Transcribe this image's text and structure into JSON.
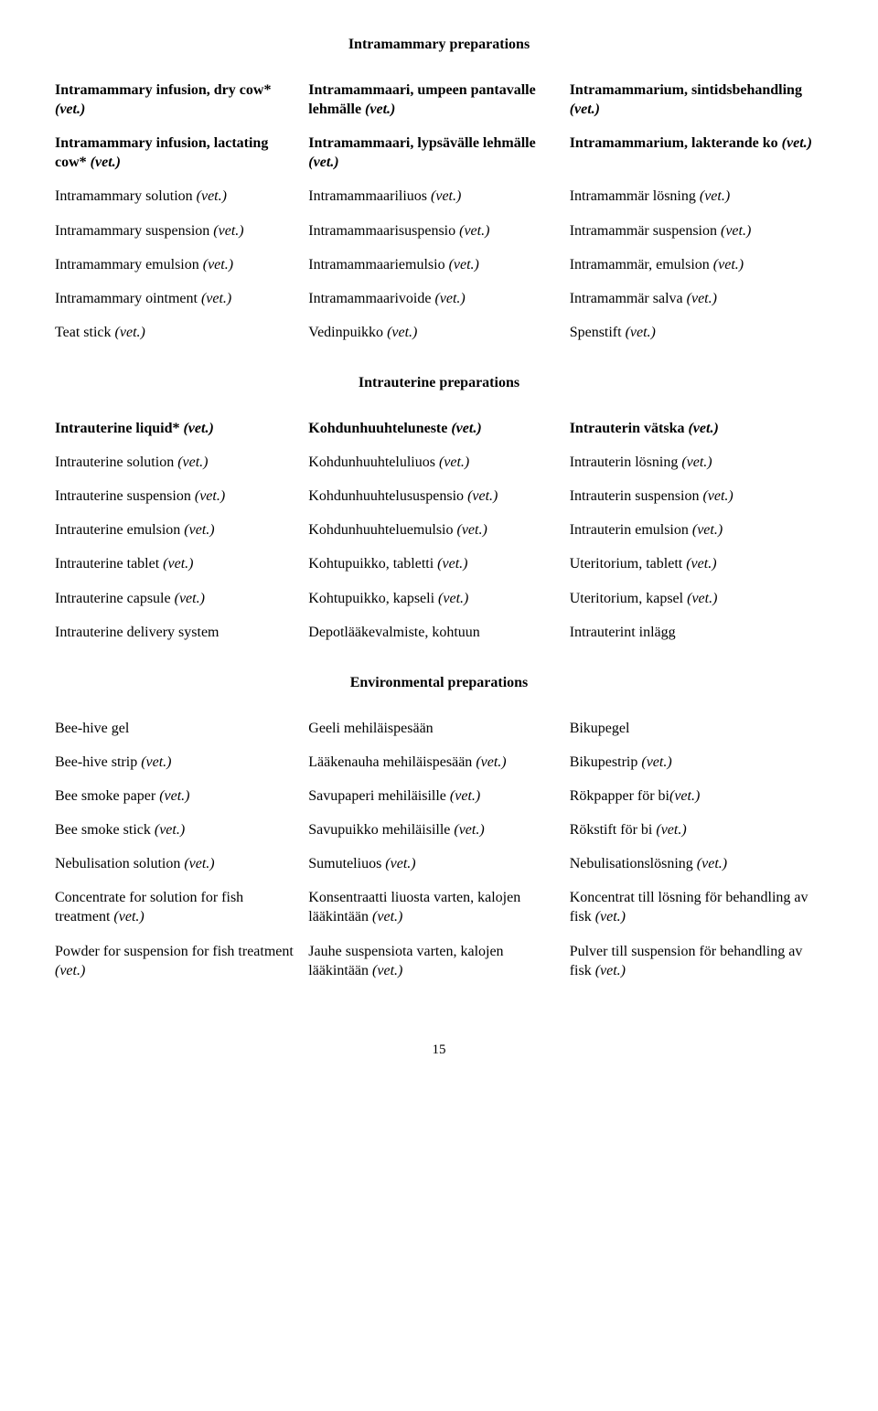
{
  "page_number": "15",
  "sections": [
    {
      "heading": "Intramammary preparations",
      "rows": [
        {
          "c1_pre": "Intramammary infusion, dry cow* ",
          "c1_bp": true,
          "c1_it": "(vet.)",
          "c2_pre": "Intramammaari, umpeen pantavalle lehmälle ",
          "c2_bp": true,
          "c2_it": "(vet.)",
          "c3_pre": "Intramammarium, sintidsbehandling ",
          "c3_bp": true,
          "c3_it": "(vet.)"
        },
        {
          "c1_pre": "Intramammary infusion, lactating cow* ",
          "c1_bp": true,
          "c1_it": "(vet.)",
          "c2_pre": "Intramammaari, lypsävälle lehmälle ",
          "c2_bp": true,
          "c2_it": "(vet.)",
          "c3_pre": "Intramammarium, lakterande ko ",
          "c3_bp": true,
          "c3_it": "(vet.)"
        },
        {
          "c1_pre": "Intramammary solution ",
          "c1_bp": false,
          "c1_it": "(vet.)",
          "c2_pre": "Intramammaariliuos ",
          "c2_bp": false,
          "c2_it": "(vet.)",
          "c3_pre": "Intramammär lösning ",
          "c3_bp": false,
          "c3_it": "(vet.)"
        },
        {
          "c1_pre": "Intramammary suspension ",
          "c1_bp": false,
          "c1_it": "(vet.)",
          "c2_pre": "Intramammaarisuspensio ",
          "c2_bp": false,
          "c2_it": "(vet.)",
          "c3_pre": "Intramammär suspension ",
          "c3_bp": false,
          "c3_it": "(vet.)"
        },
        {
          "c1_pre": "Intramammary emulsion ",
          "c1_bp": false,
          "c1_it": "(vet.)",
          "c2_pre": "Intramammaariemulsio ",
          "c2_bp": false,
          "c2_it": "(vet.)",
          "c3_pre": "Intramammär, emulsion ",
          "c3_bp": false,
          "c3_it": "(vet.)"
        },
        {
          "c1_pre": "Intramammary ointment ",
          "c1_bp": false,
          "c1_it": "(vet.)",
          "c2_pre": "Intramammaarivoide ",
          "c2_bp": false,
          "c2_it": "(vet.)",
          "c3_pre": "Intramammär salva ",
          "c3_bp": false,
          "c3_it": "(vet.)"
        },
        {
          "c1_pre": "Teat stick ",
          "c1_bp": false,
          "c1_it": "(vet.)",
          "c2_pre": "Vedinpuikko ",
          "c2_bp": false,
          "c2_it": "(vet.)",
          "c3_pre": "Spenstift ",
          "c3_bp": false,
          "c3_it": "(vet.)"
        }
      ]
    },
    {
      "heading": "Intrauterine preparations",
      "rows": [
        {
          "c1_pre": "Intrauterine liquid* ",
          "c1_bp": true,
          "c1_it": "(vet.)",
          "c2_pre": "Kohdunhuuhteluneste ",
          "c2_bp": true,
          "c2_it": "(vet.)",
          "c3_pre": "Intrauterin vätska ",
          "c3_bp": true,
          "c3_it": "(vet.)"
        },
        {
          "c1_pre": "Intrauterine solution ",
          "c1_bp": false,
          "c1_it": "(vet.)",
          "c2_pre": "Kohdunhuuhteluliuos ",
          "c2_bp": false,
          "c2_it": "(vet.)",
          "c3_pre": "Intrauterin lösning ",
          "c3_bp": false,
          "c3_it": "(vet.)"
        },
        {
          "c1_pre": "Intrauterine suspension ",
          "c1_bp": false,
          "c1_it": "(vet.)",
          "c2_pre": "Kohdunhuuhtelususpensio ",
          "c2_bp": false,
          "c2_it": "(vet.)",
          "c3_pre": "Intrauterin suspension ",
          "c3_bp": false,
          "c3_it": "(vet.)"
        },
        {
          "c1_pre": "Intrauterine emulsion ",
          "c1_bp": false,
          "c1_it": "(vet.)",
          "c2_pre": "Kohdunhuuhteluemulsio ",
          "c2_bp": false,
          "c2_it": "(vet.)",
          "c3_pre": "Intrauterin emulsion ",
          "c3_bp": false,
          "c3_it": "(vet.)"
        },
        {
          "c1_pre": "Intrauterine tablet ",
          "c1_bp": false,
          "c1_it": "(vet.)",
          "c2_pre": "Kohtupuikko, tabletti ",
          "c2_bp": false,
          "c2_it": "(vet.)",
          "c3_pre": "Uteritorium, tablett ",
          "c3_bp": false,
          "c3_it": "(vet.)"
        },
        {
          "c1_pre": "Intrauterine capsule ",
          "c1_bp": false,
          "c1_it": "(vet.)",
          "c2_pre": "Kohtupuikko, kapseli ",
          "c2_bp": false,
          "c2_it": "(vet.)",
          "c3_pre": "Uteritorium, kapsel ",
          "c3_bp": false,
          "c3_it": "(vet.)"
        },
        {
          "c1_pre": "Intrauterine delivery system",
          "c1_bp": false,
          "c1_it": "",
          "c2_pre": "Depotlääkevalmiste, kohtuun",
          "c2_bp": false,
          "c2_it": "",
          "c3_pre": "Intrauterint inlägg",
          "c3_bp": false,
          "c3_it": ""
        }
      ]
    },
    {
      "heading": "Environmental preparations",
      "rows": [
        {
          "c1_pre": "Bee-hive gel",
          "c1_bp": false,
          "c1_it": "",
          "c2_pre": "Geeli mehiläispesään",
          "c2_bp": false,
          "c2_it": "",
          "c3_pre": "Bikupegel",
          "c3_bp": false,
          "c3_it": ""
        },
        {
          "c1_pre": "Bee-hive strip ",
          "c1_bp": false,
          "c1_it": "(vet.)",
          "c2_pre": "Lääkenauha mehiläispesään ",
          "c2_bp": false,
          "c2_it": "(vet.)",
          "c3_pre": "Bikupestrip ",
          "c3_bp": false,
          "c3_it": "(vet.)"
        },
        {
          "c1_pre": "Bee smoke paper ",
          "c1_bp": false,
          "c1_it": "(vet.)",
          "c2_pre": "Savupaperi mehiläisille ",
          "c2_bp": false,
          "c2_it": "(vet.)",
          "c3_pre": "Rökpapper för bi",
          "c3_bp": false,
          "c3_it": "(vet.)"
        },
        {
          "c1_pre": "Bee smoke stick ",
          "c1_bp": false,
          "c1_it": "(vet.)",
          "c2_pre": "Savupuikko mehiläisille ",
          "c2_bp": false,
          "c2_it": "(vet.)",
          "c3_pre": "Rökstift för bi ",
          "c3_bp": false,
          "c3_it": "(vet.)"
        },
        {
          "c1_pre": "Nebulisation solution ",
          "c1_bp": false,
          "c1_it": "(vet.)",
          "c2_pre": "Sumuteliuos ",
          "c2_bp": false,
          "c2_it": "(vet.)",
          "c3_pre": "Nebulisationslösning ",
          "c3_bp": false,
          "c3_it": "(vet.)"
        },
        {
          "c1_pre": "Concentrate for solution for fish treatment ",
          "c1_bp": false,
          "c1_it": "(vet.)",
          "c2_pre": "Konsentraatti liuosta varten, kalojen lääkintään ",
          "c2_bp": false,
          "c2_it": "(vet.)",
          "c3_pre": "Koncentrat till lösning för behandling av fisk ",
          "c3_bp": false,
          "c3_it": "(vet.)"
        },
        {
          "c1_pre": "Powder for suspension for fish treatment ",
          "c1_bp": false,
          "c1_it": "(vet.)",
          "c2_pre": "Jauhe suspensiota varten, kalojen lääkintään ",
          "c2_bp": false,
          "c2_it": "(vet.)",
          "c3_pre": "Pulver till suspension för behandling av fisk ",
          "c3_bp": false,
          "c3_it": "(vet.)"
        }
      ]
    }
  ]
}
